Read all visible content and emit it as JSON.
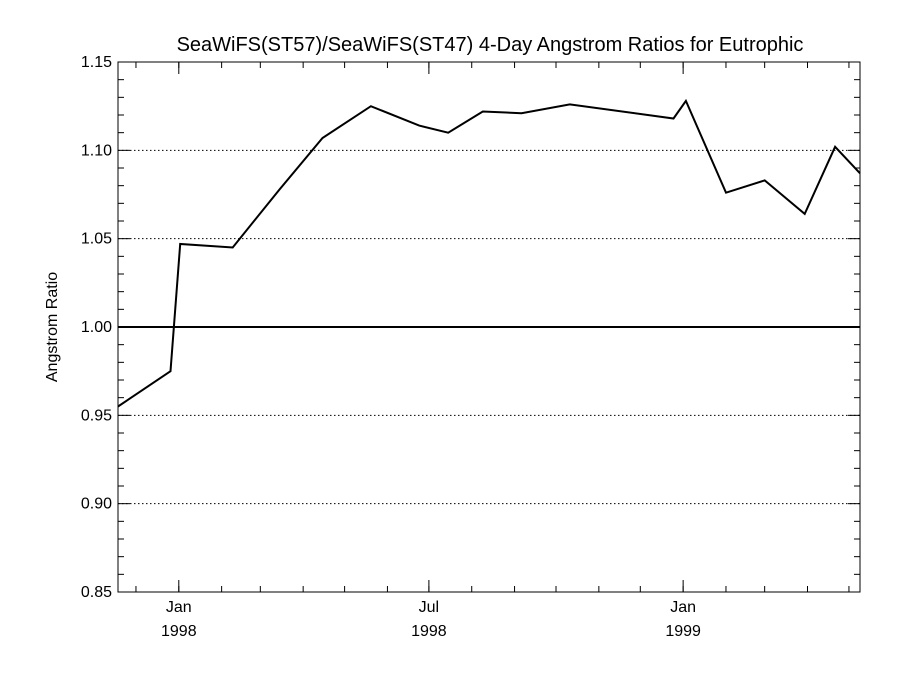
{
  "chart_data": {
    "type": "line",
    "title": "SeaWiFS(ST57)/SeaWiFS(ST47) 4-Day Angstrom Ratios for Eutrophic",
    "xlabel": "",
    "ylabel": "Angstrom Ratio",
    "xlim": [
      "1997-11-18",
      "1999-05-09"
    ],
    "ylim": [
      0.85,
      1.15
    ],
    "x_ticks": [
      {
        "date": "1998-01-01",
        "month": "Jan",
        "year": "1998"
      },
      {
        "date": "1998-07-01",
        "month": "Jul",
        "year": "1998"
      },
      {
        "date": "1999-01-01",
        "month": "Jan",
        "year": "1999"
      }
    ],
    "y_ticks": [
      "0.85",
      "0.90",
      "0.95",
      "1.00",
      "1.05",
      "1.10",
      "1.15"
    ],
    "grid": "dotted horizontal lines at major y ticks",
    "reference_line": {
      "y": 1.0
    },
    "series": [
      {
        "color": "#000000",
        "points": [
          {
            "x": "1997-11-18",
            "y": 0.955
          },
          {
            "x": "1997-12-26",
            "y": 0.975
          },
          {
            "x": "1998-01-02",
            "y": 1.047
          },
          {
            "x": "1998-02-09",
            "y": 1.045
          },
          {
            "x": "1998-03-15",
            "y": 1.078
          },
          {
            "x": "1998-04-15",
            "y": 1.107
          },
          {
            "x": "1998-05-20",
            "y": 1.125
          },
          {
            "x": "1998-06-24",
            "y": 1.114
          },
          {
            "x": "1998-07-15",
            "y": 1.11
          },
          {
            "x": "1998-08-09",
            "y": 1.122
          },
          {
            "x": "1998-09-06",
            "y": 1.121
          },
          {
            "x": "1998-10-11",
            "y": 1.126
          },
          {
            "x": "1998-12-25",
            "y": 1.118
          },
          {
            "x": "1999-01-03",
            "y": 1.128
          },
          {
            "x": "1999-02-01",
            "y": 1.076
          },
          {
            "x": "1999-03-01",
            "y": 1.083
          },
          {
            "x": "1999-03-30",
            "y": 1.064
          },
          {
            "x": "1999-04-21",
            "y": 1.102
          },
          {
            "x": "1999-05-09",
            "y": 1.087
          }
        ]
      }
    ]
  }
}
